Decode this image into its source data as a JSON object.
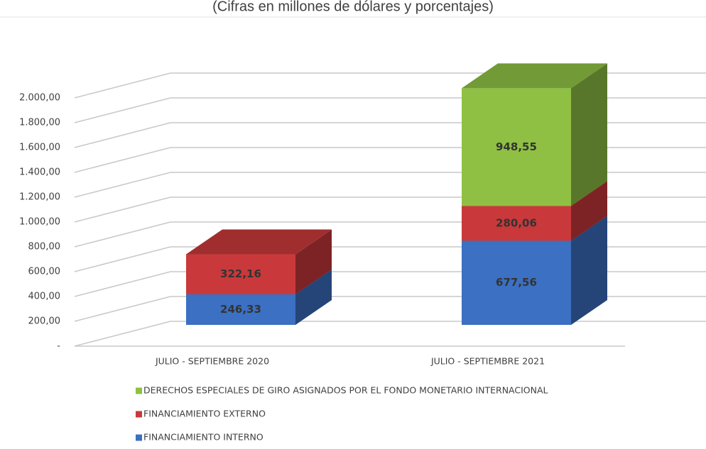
{
  "chart_data": {
    "type": "bar3d_stacked",
    "title": "(Cifras en millones de dólares y porcentajes)",
    "categories": [
      "JULIO - SEPTIEMBRE 2020",
      "JULIO - SEPTIEMBRE 2021"
    ],
    "series": [
      {
        "name": "FINANCIAMIENTO INTERNO",
        "color": "#3b70c2",
        "values": [
          246.33,
          677.56
        ],
        "value_labels": [
          "246,33",
          "677,56"
        ]
      },
      {
        "name": "FINANCIAMIENTO EXTERNO",
        "color": "#c9393b",
        "values": [
          322.16,
          280.06
        ],
        "value_labels": [
          "322,16",
          "280,06"
        ]
      },
      {
        "name": "DERECHOS ESPECIALES DE GIRO ASIGNADOS POR EL FONDO MONETARIO INTERNACIONAL",
        "color": "#8fc043",
        "values": [
          null,
          948.55
        ],
        "value_labels": [
          null,
          "948,55"
        ]
      }
    ],
    "ylim": [
      0,
      2400
    ],
    "yticks": [
      {
        "value": 0,
        "label": "-"
      },
      {
        "value": 200,
        "label": "200,00"
      },
      {
        "value": 400,
        "label": "400,00"
      },
      {
        "value": 600,
        "label": "600,00"
      },
      {
        "value": 800,
        "label": "800,00"
      },
      {
        "value": 1000,
        "label": "1.000,00"
      },
      {
        "value": 1200,
        "label": "1.200,00"
      },
      {
        "value": 1400,
        "label": "1.400,00"
      },
      {
        "value": 1600,
        "label": "1.600,00"
      },
      {
        "value": 1800,
        "label": "1.800,00"
      },
      {
        "value": 2000,
        "label": "2.000,00"
      }
    ],
    "grid": true,
    "legend": "bottom"
  }
}
